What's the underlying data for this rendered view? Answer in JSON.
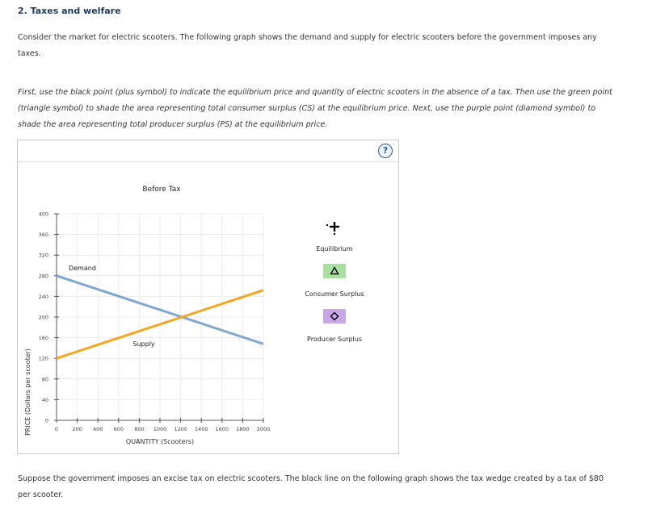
{
  "question": {
    "heading": "2. Taxes and welfare",
    "intro": "Consider the market for electric scooters. The following graph shows the demand and supply for electric scooters before the government imposes any taxes.",
    "instructions": "First, use the black point (plus symbol) to indicate the equilibrium price and quantity of electric scooters in the absence of a tax. Then use the green point (triangle symbol) to shade the area representing total consumer surplus (CS) at the equilibrium price. Next, use the purple point (diamond symbol) to shade the area representing total producer surplus (PS) at the equilibrium price.",
    "followup": "Suppose the government imposes an excise tax on electric scooters. The black line on the following graph shows the tax wedge created by a tax of $80 per scooter."
  },
  "help_label": "?",
  "palette": {
    "equilibrium": {
      "label": "Equilibrium",
      "icon": "plus-icon",
      "color": "#000000"
    },
    "consumer_surplus": {
      "label": "Consumer Surplus",
      "icon": "triangle-icon",
      "color": "#a8e0a0"
    },
    "producer_surplus": {
      "label": "Producer Surplus",
      "icon": "diamond-icon",
      "color": "#c9a6e6"
    }
  },
  "chart_data": {
    "type": "line",
    "title": "Before Tax",
    "xlabel": "QUANTITY (Scooters)",
    "ylabel": "PRICE (Dollars per scooter)",
    "xlim": [
      0,
      2000
    ],
    "ylim": [
      0,
      400
    ],
    "x_ticks": [
      0,
      200,
      400,
      600,
      800,
      1000,
      1200,
      1400,
      1600,
      1800,
      2000
    ],
    "y_ticks": [
      0,
      40,
      80,
      120,
      160,
      200,
      240,
      280,
      320,
      360,
      400
    ],
    "grid": true,
    "series": [
      {
        "name": "Demand",
        "color": "#7fa7cf",
        "x": [
          0,
          2000
        ],
        "y": [
          280,
          148
        ]
      },
      {
        "name": "Supply",
        "color": "#f5a623",
        "x": [
          0,
          2000
        ],
        "y": [
          120,
          252
        ]
      }
    ]
  }
}
